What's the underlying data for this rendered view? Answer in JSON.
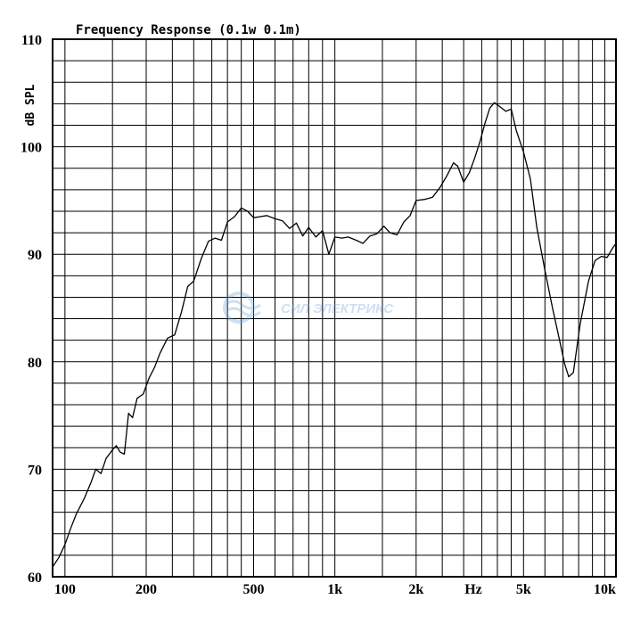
{
  "chart_data": {
    "type": "line",
    "title": "Frequency Response  (0.1w 0.1m)",
    "ylabel": "dB SPL",
    "xlabel": "Hz",
    "x_scale": "log",
    "xlim": [
      90,
      11000
    ],
    "ylim": [
      60,
      110
    ],
    "grid": true,
    "y_ticks": [
      {
        "value": 60,
        "label": "60"
      },
      {
        "value": 70,
        "label": "70"
      },
      {
        "value": 80,
        "label": "80"
      },
      {
        "value": 90,
        "label": "90"
      },
      {
        "value": 100,
        "label": "100"
      },
      {
        "value": 110,
        "label": "110"
      }
    ],
    "x_ticks": [
      {
        "value": 100,
        "label": "100"
      },
      {
        "value": 200,
        "label": "200"
      },
      {
        "value": 500,
        "label": "500"
      },
      {
        "value": 1000,
        "label": "1k"
      },
      {
        "value": 2000,
        "label": "2k"
      },
      {
        "value": 5000,
        "label": "5k"
      },
      {
        "value": 10000,
        "label": "10k"
      }
    ],
    "x_grid": [
      100,
      150,
      200,
      250,
      300,
      350,
      400,
      450,
      500,
      600,
      700,
      800,
      900,
      1000,
      1500,
      2000,
      2500,
      3000,
      3500,
      4000,
      4500,
      5000,
      6000,
      7000,
      8000,
      9000,
      10000
    ],
    "y_grid_step": 2,
    "series": [
      {
        "color": "#000000",
        "points": [
          [
            90,
            60.9
          ],
          [
            95,
            61.8
          ],
          [
            100,
            63.0
          ],
          [
            105,
            64.5
          ],
          [
            110,
            65.8
          ],
          [
            118,
            67.3
          ],
          [
            125,
            68.8
          ],
          [
            130,
            70.0
          ],
          [
            136,
            69.6
          ],
          [
            142,
            71.0
          ],
          [
            150,
            71.8
          ],
          [
            155,
            72.2
          ],
          [
            160,
            71.6
          ],
          [
            166,
            71.4
          ],
          [
            172,
            75.2
          ],
          [
            178,
            74.8
          ],
          [
            185,
            76.6
          ],
          [
            195,
            77.0
          ],
          [
            205,
            78.5
          ],
          [
            215,
            79.5
          ],
          [
            225,
            80.8
          ],
          [
            240,
            82.2
          ],
          [
            255,
            82.5
          ],
          [
            270,
            84.6
          ],
          [
            285,
            87.0
          ],
          [
            300,
            87.5
          ],
          [
            320,
            89.6
          ],
          [
            340,
            91.2
          ],
          [
            360,
            91.5
          ],
          [
            380,
            91.3
          ],
          [
            400,
            93.0
          ],
          [
            425,
            93.5
          ],
          [
            450,
            94.3
          ],
          [
            475,
            94.0
          ],
          [
            500,
            93.4
          ],
          [
            530,
            93.5
          ],
          [
            560,
            93.6
          ],
          [
            600,
            93.3
          ],
          [
            640,
            93.1
          ],
          [
            680,
            92.4
          ],
          [
            720,
            92.9
          ],
          [
            760,
            91.7
          ],
          [
            800,
            92.5
          ],
          [
            850,
            91.6
          ],
          [
            900,
            92.2
          ],
          [
            950,
            90.0
          ],
          [
            1000,
            91.6
          ],
          [
            1060,
            91.5
          ],
          [
            1120,
            91.6
          ],
          [
            1200,
            91.3
          ],
          [
            1270,
            91.0
          ],
          [
            1350,
            91.7
          ],
          [
            1430,
            91.9
          ],
          [
            1520,
            92.6
          ],
          [
            1600,
            92.0
          ],
          [
            1700,
            91.8
          ],
          [
            1800,
            93.0
          ],
          [
            1900,
            93.6
          ],
          [
            2000,
            95.0
          ],
          [
            2150,
            95.1
          ],
          [
            2300,
            95.3
          ],
          [
            2450,
            96.2
          ],
          [
            2600,
            97.3
          ],
          [
            2750,
            98.5
          ],
          [
            2850,
            98.2
          ],
          [
            3000,
            96.7
          ],
          [
            3150,
            97.6
          ],
          [
            3300,
            99.0
          ],
          [
            3450,
            100.5
          ],
          [
            3600,
            102.2
          ],
          [
            3750,
            103.6
          ],
          [
            3900,
            104.1
          ],
          [
            4100,
            103.7
          ],
          [
            4300,
            103.3
          ],
          [
            4500,
            103.5
          ],
          [
            4700,
            101.5
          ],
          [
            5000,
            99.5
          ],
          [
            5300,
            97.0
          ],
          [
            5600,
            92.5
          ],
          [
            6000,
            88.5
          ],
          [
            6400,
            85.0
          ],
          [
            6800,
            82.0
          ],
          [
            7100,
            79.8
          ],
          [
            7350,
            78.6
          ],
          [
            7650,
            79.0
          ],
          [
            8100,
            83.5
          ],
          [
            8700,
            87.5
          ],
          [
            9200,
            89.4
          ],
          [
            9700,
            89.8
          ],
          [
            10200,
            89.7
          ],
          [
            10700,
            90.6
          ],
          [
            11000,
            91.0
          ]
        ]
      }
    ]
  }
}
